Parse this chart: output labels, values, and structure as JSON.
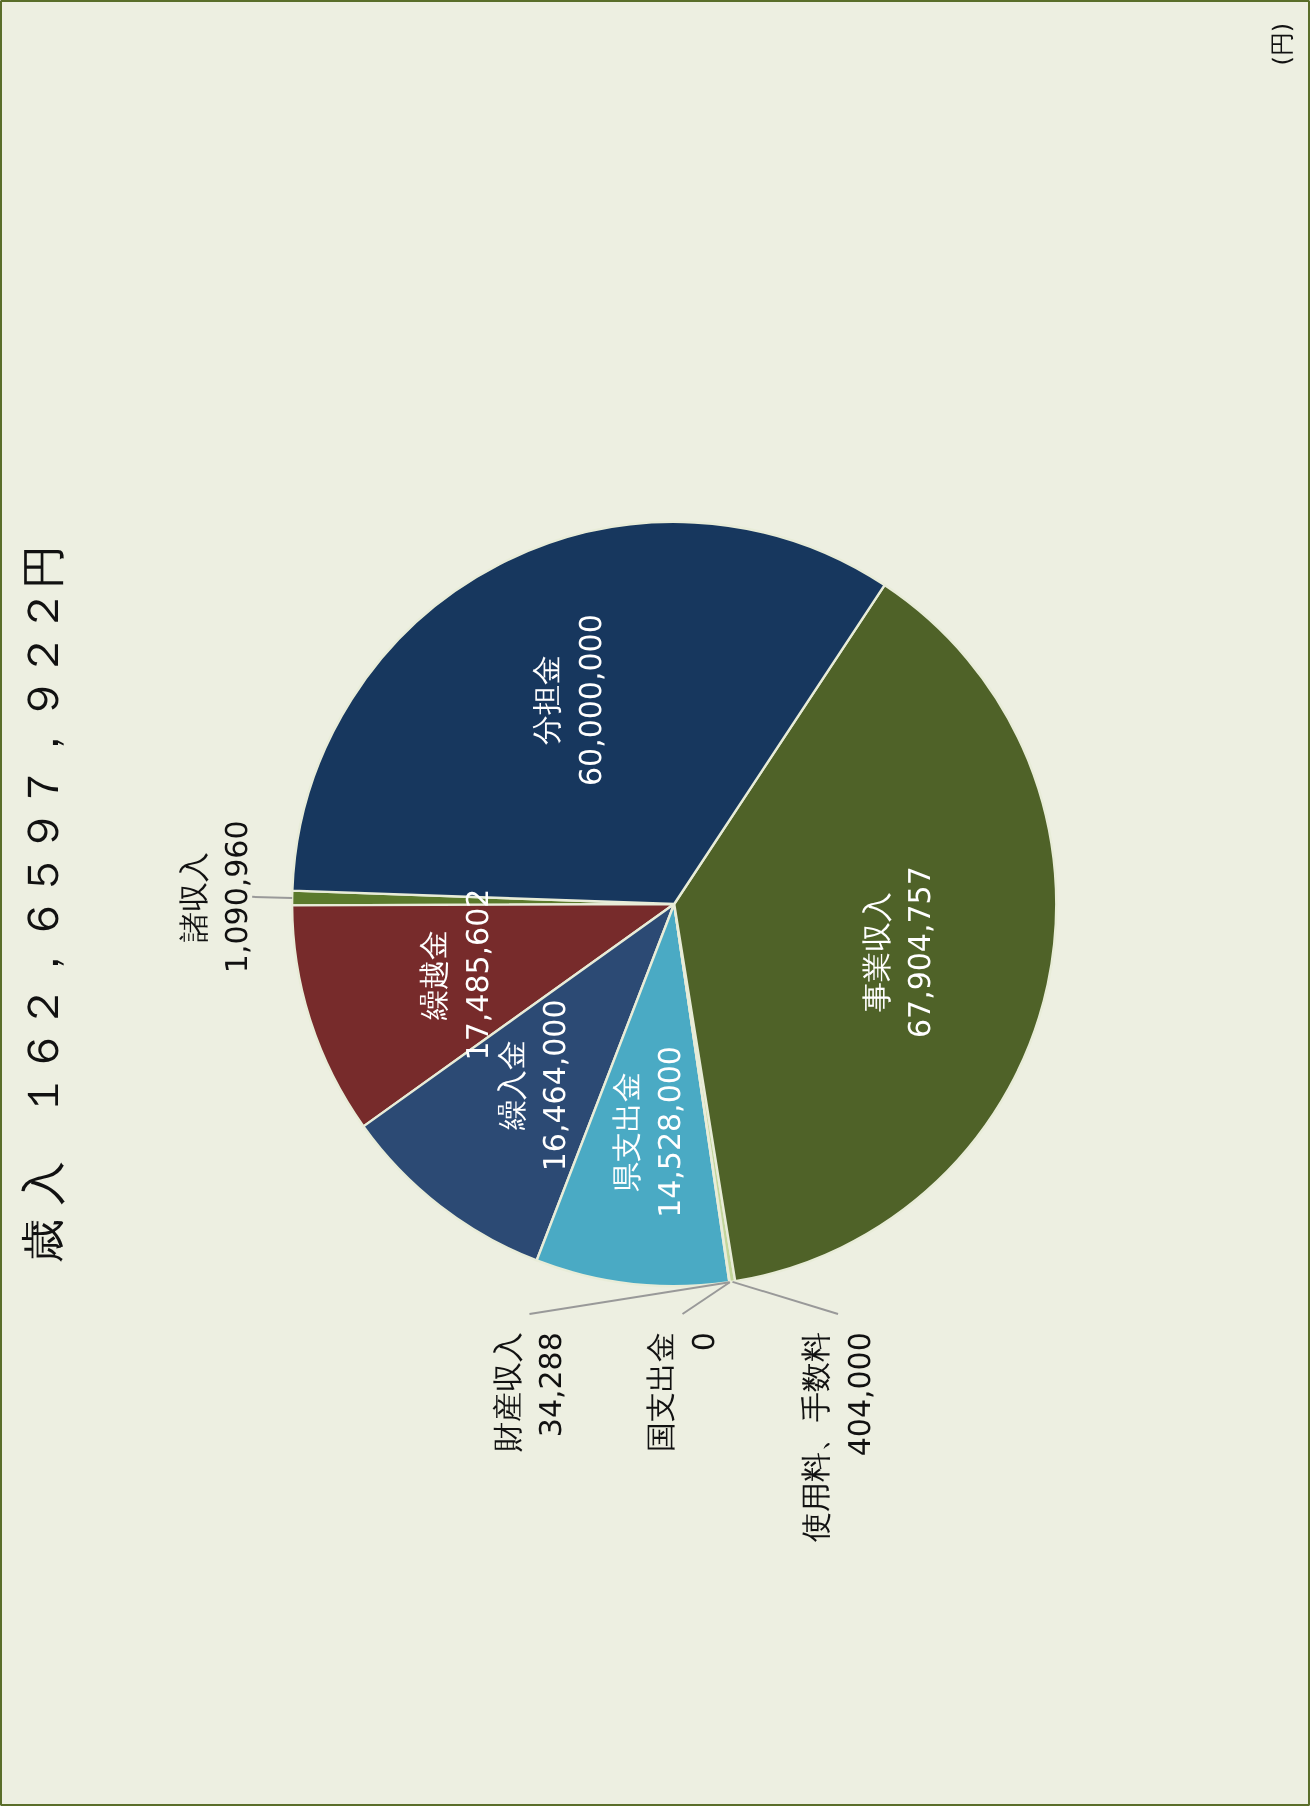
{
  "chart_data": {
    "type": "pie",
    "title": "歳 入　１６２，６５９７，９２２円",
    "annotations": [
      "(円)"
    ],
    "categories": [
      "諸収入",
      "繰越金",
      "繰入金",
      "県支出金",
      "財産収入",
      "国支出金",
      "使用料、手数料",
      "事業収入",
      "分担金"
    ],
    "values": [
      1090960,
      17485602,
      16464000,
      14528000,
      34288,
      0,
      404000,
      67904757,
      60000000
    ],
    "colors": [
      "#5b7a2c",
      "#772b2b",
      "#2c4a74",
      "#4aaac4",
      "#8a9aa8",
      "#4aaac4",
      "#c3d69b",
      "#4f6228",
      "#17375e"
    ],
    "value_labels": [
      "1,090,960",
      "17,485,602",
      "16,464,000",
      "14,528,000",
      "34,288",
      "0",
      "404,000",
      "67,904,757",
      "60,000,000"
    ]
  }
}
